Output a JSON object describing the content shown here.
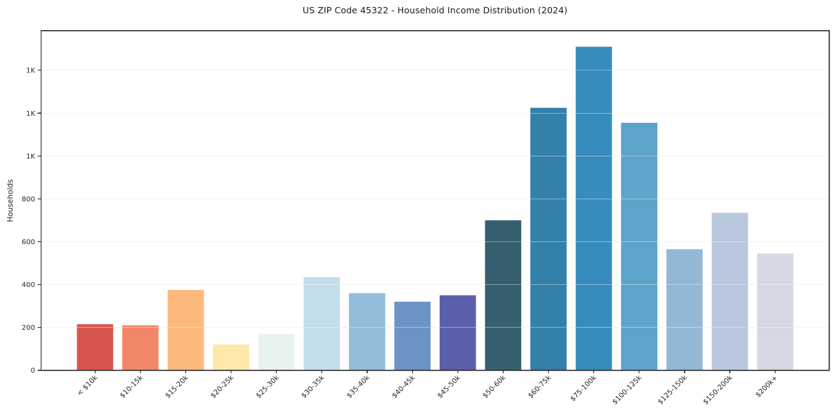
{
  "chart_data": {
    "type": "bar",
    "title": "US ZIP Code 45322 - Household Income Distribution (2024)",
    "ylabel": "Households",
    "xlabel": "",
    "categories": [
      "< $10k",
      "$10-15k",
      "$15-20k",
      "$20-25k",
      "$25-30k",
      "$30-35k",
      "$35-40k",
      "$40-45k",
      "$45-50k",
      "$50-60k",
      "$60-75k",
      "$75-100k",
      "$100-125k",
      "$125-150k",
      "$150-200k",
      "$200k+"
    ],
    "values": [
      215,
      210,
      375,
      120,
      170,
      435,
      360,
      320,
      350,
      700,
      1225,
      1510,
      1155,
      565,
      735,
      545
    ],
    "bar_colors": [
      "#d6564e",
      "#f28767",
      "#fcb97c",
      "#fde8a9",
      "#e9f3f0",
      "#c2dfe9",
      "#92bddb",
      "#6b93c4",
      "#5b5fab",
      "#36606f",
      "#3380ab",
      "#388cbd",
      "#5da4ca",
      "#92b8d6",
      "#b9c8de",
      "#d7d8e5"
    ],
    "ylim": [
      0,
      1585
    ],
    "yticks": [
      0,
      200,
      400,
      600,
      800,
      1000,
      1200,
      1400
    ],
    "ytick_labels": [
      "0",
      "200",
      "400",
      "600",
      "800",
      "1K",
      "1K",
      "1K"
    ],
    "grid": "horizontal",
    "legend": "none",
    "x_tick_rotation": 45,
    "bar_width_fraction": 0.8,
    "colors": {
      "spine": "#1f1f1f",
      "grid": "#e9e9e9",
      "grid_over_bars": "#ffffff",
      "tick_text": "#262626",
      "background": "#ffffff"
    }
  }
}
